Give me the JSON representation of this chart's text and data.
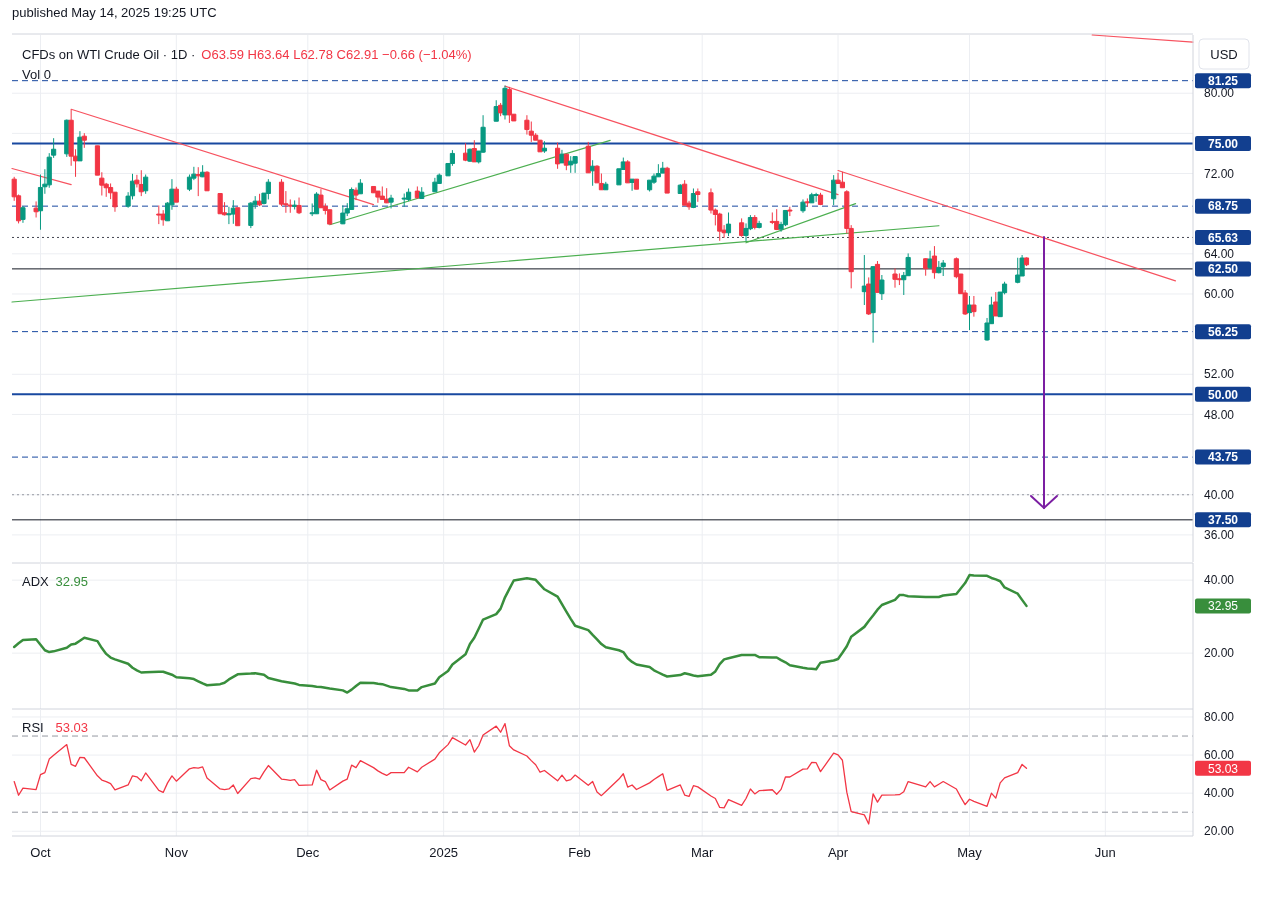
{
  "chart_data": [
    {
      "type": "candlestick",
      "title": "CFDs on WTI Crude Oil · 1D ·",
      "subtitle": "O63.59 H63.64 L62.78 C62.91 −0.66 (−1.04%)",
      "ylabel": "USD",
      "annotations": [
        "published May 14, 2025 19:25 UTC",
        "Vol 0"
      ],
      "x": [
        "2024-09-25",
        "2024-09-26",
        "2024-09-27",
        "2024-09-30",
        "2024-10-01",
        "2024-10-02",
        "2024-10-03",
        "2024-10-04",
        "2024-10-07",
        "2024-10-08",
        "2024-10-09",
        "2024-10-10",
        "2024-10-11",
        "2024-10-14",
        "2024-10-15",
        "2024-10-16",
        "2024-10-17",
        "2024-10-18",
        "2024-10-21",
        "2024-10-22",
        "2024-10-23",
        "2024-10-24",
        "2024-10-25",
        "2024-10-28",
        "2024-10-29",
        "2024-10-30",
        "2024-10-31",
        "2024-11-01",
        "2024-11-04",
        "2024-11-05",
        "2024-11-06",
        "2024-11-07",
        "2024-11-08",
        "2024-11-11",
        "2024-11-12",
        "2024-11-13",
        "2024-11-14",
        "2024-11-15",
        "2024-11-18",
        "2024-11-19",
        "2024-11-20",
        "2024-11-21",
        "2024-11-22",
        "2024-11-25",
        "2024-11-26",
        "2024-11-27",
        "2024-11-28",
        "2024-11-29",
        "2024-12-02",
        "2024-12-03",
        "2024-12-04",
        "2024-12-05",
        "2024-12-06",
        "2024-12-09",
        "2024-12-10",
        "2024-12-11",
        "2024-12-12",
        "2024-12-13",
        "2024-12-16",
        "2024-12-17",
        "2024-12-18",
        "2024-12-19",
        "2024-12-20",
        "2024-12-23",
        "2024-12-24",
        "2024-12-26",
        "2024-12-27",
        "2024-12-30",
        "2024-12-31",
        "2025-01-02",
        "2025-01-03",
        "2025-01-06",
        "2025-01-07",
        "2025-01-08",
        "2025-01-09",
        "2025-01-10",
        "2025-01-13",
        "2025-01-14",
        "2025-01-15",
        "2025-01-16",
        "2025-01-17",
        "2025-01-20",
        "2025-01-21",
        "2025-01-22",
        "2025-01-23",
        "2025-01-24",
        "2025-01-27",
        "2025-01-28",
        "2025-01-29",
        "2025-01-30",
        "2025-01-31",
        "2025-02-03",
        "2025-02-04",
        "2025-02-05",
        "2025-02-06",
        "2025-02-07",
        "2025-02-10",
        "2025-02-11",
        "2025-02-12",
        "2025-02-13",
        "2025-02-14",
        "2025-02-17",
        "2025-02-18",
        "2025-02-19",
        "2025-02-20",
        "2025-02-21",
        "2025-02-24",
        "2025-02-25",
        "2025-02-26",
        "2025-02-27",
        "2025-02-28",
        "2025-03-03",
        "2025-03-04",
        "2025-03-05",
        "2025-03-06",
        "2025-03-07",
        "2025-03-10",
        "2025-03-11",
        "2025-03-12",
        "2025-03-13",
        "2025-03-14",
        "2025-03-17",
        "2025-03-18",
        "2025-03-19",
        "2025-03-20",
        "2025-03-21",
        "2025-03-24",
        "2025-03-25",
        "2025-03-26",
        "2025-03-27",
        "2025-03-28",
        "2025-03-31",
        "2025-04-01",
        "2025-04-02",
        "2025-04-03",
        "2025-04-04",
        "2025-04-07",
        "2025-04-08",
        "2025-04-09",
        "2025-04-10",
        "2025-04-11",
        "2025-04-14",
        "2025-04-15",
        "2025-04-16",
        "2025-04-17",
        "2025-04-21",
        "2025-04-22",
        "2025-04-23",
        "2025-04-24",
        "2025-04-25",
        "2025-04-28",
        "2025-04-29",
        "2025-04-30",
        "2025-05-01",
        "2025-05-02",
        "2025-05-05",
        "2025-05-06",
        "2025-05-07",
        "2025-05-08",
        "2025-05-09",
        "2025-05-12",
        "2025-05-13",
        "2025-05-14"
      ],
      "ohlc": [
        [
          71.44,
          71.67,
          69.28,
          69.68
        ],
        [
          69.78,
          69.91,
          67.03,
          67.29
        ],
        [
          67.43,
          68.75,
          67.09,
          68.59
        ],
        [
          68.55,
          69.22,
          67.62,
          68.19
        ],
        [
          68.29,
          71.9,
          66.4,
          70.61
        ],
        [
          70.68,
          72.43,
          69.98,
          70.94
        ],
        [
          70.87,
          74.03,
          70.58,
          73.63
        ],
        [
          73.83,
          75.52,
          73.56,
          74.42
        ],
        [
          73.96,
          77.38,
          73.66,
          77.31
        ],
        [
          77.31,
          78.37,
          72.77,
          73.73
        ],
        [
          73.73,
          74.42,
          71.67,
          73.26
        ],
        [
          73.26,
          76.22,
          73.26,
          75.62
        ],
        [
          75.72,
          76.02,
          74.56,
          75.32
        ],
        [
          74.76,
          74.76,
          71.84,
          71.84
        ],
        [
          71.54,
          72.13,
          69.81,
          70.84
        ],
        [
          70.94,
          71.07,
          69.68,
          70.58
        ],
        [
          70.61,
          71.01,
          69.45,
          70.08
        ],
        [
          70.14,
          70.14,
          68.19,
          68.69
        ],
        [
          68.75,
          70.14,
          68.59,
          69.75
        ],
        [
          69.78,
          71.97,
          69.42,
          71.24
        ],
        [
          71.34,
          71.87,
          70.61,
          70.97
        ],
        [
          70.91,
          72.33,
          69.75,
          70.18
        ],
        [
          70.28,
          71.9,
          69.98,
          71.64
        ],
        [
          67.96,
          68.82,
          66.96,
          67.86
        ],
        [
          67.96,
          68.35,
          66.8,
          67.39
        ],
        [
          67.29,
          69.15,
          67.29,
          69.05
        ],
        [
          68.88,
          71.44,
          68.39,
          70.44
        ],
        [
          70.44,
          70.68,
          69.15,
          69.15
        ],
        [
          70.44,
          71.9,
          70.25,
          71.64
        ],
        [
          71.54,
          72.67,
          71.34,
          71.94
        ],
        [
          71.9,
          72.63,
          69.75,
          71.77
        ],
        [
          71.67,
          72.83,
          71.64,
          72.13
        ],
        [
          72.13,
          72.23,
          70.28,
          70.28
        ],
        [
          70.01,
          70.01,
          67.99,
          67.99
        ],
        [
          68.09,
          69.15,
          67.82,
          67.89
        ],
        [
          67.92,
          68.69,
          66.96,
          67.99
        ],
        [
          67.96,
          69.35,
          66.99,
          68.55
        ],
        [
          68.59,
          68.59,
          66.8,
          66.8
        ],
        [
          66.83,
          69.15,
          66.56,
          69.05
        ],
        [
          68.88,
          69.75,
          68.49,
          69.25
        ],
        [
          69.25,
          69.98,
          68.75,
          68.88
        ],
        [
          69.02,
          70.05,
          68.92,
          70.05
        ],
        [
          70.01,
          71.44,
          69.42,
          71.14
        ],
        [
          71.14,
          71.44,
          68.75,
          68.95
        ],
        [
          68.98,
          70.25,
          68.09,
          68.92
        ],
        [
          68.85,
          69.42,
          68.09,
          68.78
        ],
        [
          68.72,
          69.32,
          68.42,
          68.85
        ],
        [
          68.82,
          69.61,
          67.96,
          68.09
        ],
        [
          68.02,
          69.02,
          67.76,
          68.09
        ],
        [
          67.99,
          70.14,
          67.99,
          69.95
        ],
        [
          69.85,
          70.44,
          68.59,
          68.59
        ],
        [
          68.72,
          69.02,
          67.92,
          68.32
        ],
        [
          68.39,
          68.39,
          66.96,
          66.96
        ],
        [
          66.99,
          68.82,
          66.96,
          68.06
        ],
        [
          68.06,
          69.05,
          67.76,
          68.49
        ],
        [
          68.42,
          70.61,
          68.42,
          70.41
        ],
        [
          70.34,
          70.61,
          69.35,
          69.85
        ],
        [
          69.98,
          71.44,
          69.98,
          71.04
        ],
        [
          70.71,
          70.71,
          70.08,
          70.08
        ],
        [
          70.25,
          70.25,
          69.08,
          69.65
        ],
        [
          69.75,
          70.71,
          69.42,
          69.42
        ],
        [
          69.45,
          70.54,
          69.05,
          69.08
        ],
        [
          69.15,
          69.88,
          68.52,
          69.55
        ],
        [
          69.48,
          70.01,
          68.69,
          69.55
        ],
        [
          69.42,
          70.51,
          69.25,
          70.14
        ],
        [
          70.25,
          70.71,
          69.51,
          69.58
        ],
        [
          69.51,
          70.64,
          69.51,
          70.14
        ],
        [
          70.18,
          71.57,
          70.18,
          71.14
        ],
        [
          71.01,
          72.0,
          71.01,
          71.84
        ],
        [
          71.77,
          73.0,
          71.77,
          73.0
        ],
        [
          73.0,
          74.33,
          72.77,
          74.0
        ],
        [
          74.03,
          75.02,
          73.23,
          73.33
        ],
        [
          73.23,
          74.49,
          73.16,
          74.42
        ],
        [
          74.49,
          75.32,
          73.16,
          73.16
        ],
        [
          73.16,
          74.24,
          73.0,
          74.24
        ],
        [
          74.13,
          77.81,
          74.06,
          76.61
        ],
        [
          77.21,
          79.3,
          77.21,
          78.67
        ],
        [
          78.8,
          79.03,
          77.71,
          78.04
        ],
        [
          77.84,
          80.76,
          77.38,
          80.49
        ],
        [
          80.36,
          80.63,
          77.04,
          77.84
        ],
        [
          77.91,
          77.91,
          77.24,
          77.24
        ],
        [
          77.31,
          77.81,
          75.88,
          76.38
        ],
        [
          76.22,
          77.18,
          75.15,
          75.82
        ],
        [
          75.82,
          76.02,
          75.32,
          75.32
        ],
        [
          75.32,
          75.35,
          74.16,
          74.16
        ],
        [
          74.24,
          75.22,
          74.06,
          74.52
        ],
        [
          74.52,
          75.09,
          72.47,
          72.96
        ],
        [
          73.06,
          74.36,
          73.06,
          73.93
        ],
        [
          73.93,
          73.93,
          72.33,
          72.83
        ],
        [
          72.86,
          73.73,
          72.07,
          73.23
        ],
        [
          73.03,
          73.69,
          72.07,
          73.69
        ],
        [
          74.72,
          75.15,
          72.07,
          72.07
        ],
        [
          72.27,
          73.33,
          70.78,
          72.73
        ],
        [
          72.73,
          72.83,
          71.07,
          71.07
        ],
        [
          71.01,
          72.0,
          70.38,
          70.38
        ],
        [
          70.38,
          71.17,
          70.38,
          70.94
        ],
        [
          70.87,
          72.47,
          70.87,
          72.47
        ],
        [
          72.4,
          73.59,
          72.4,
          73.16
        ],
        [
          73.16,
          73.33,
          71.07,
          71.07
        ],
        [
          71.11,
          71.44,
          70.28,
          71.44
        ],
        [
          71.44,
          71.44,
          70.44,
          70.44
        ],
        [
          70.38,
          71.34,
          70.21,
          71.34
        ],
        [
          71.14,
          72.0,
          70.97,
          71.74
        ],
        [
          71.67,
          72.93,
          71.67,
          72.0
        ],
        [
          72.04,
          73.16,
          72.04,
          72.53
        ],
        [
          72.53,
          72.67,
          70.05,
          70.05
        ],
        [
          70.01,
          70.94,
          70.01,
          70.84
        ],
        [
          70.94,
          71.34,
          68.85,
          68.85
        ],
        [
          69.05,
          69.28,
          68.39,
          68.69
        ],
        [
          68.62,
          70.51,
          68.55,
          70.01
        ],
        [
          70.18,
          70.51,
          69.18,
          69.91
        ],
        [
          70.08,
          70.51,
          68.02,
          68.36
        ],
        [
          68.36,
          68.52,
          66.83,
          67.92
        ],
        [
          67.96,
          68.09,
          65.3,
          66.26
        ],
        [
          66.36,
          66.86,
          65.6,
          66.1
        ],
        [
          66.1,
          68.12,
          65.77,
          66.96
        ],
        [
          67.09,
          67.53,
          65.7,
          65.83
        ],
        [
          65.83,
          67.03,
          65.27,
          66.53
        ],
        [
          66.5,
          67.86,
          66.36,
          67.62
        ],
        [
          67.62,
          67.86,
          66.43,
          66.63
        ],
        [
          66.63,
          67.29,
          66.53,
          67.03
        ],
        [
          67.23,
          68.12,
          66.96,
          67.16
        ],
        [
          67.23,
          68.45,
          66.36,
          66.43
        ],
        [
          66.46,
          67.19,
          66.2,
          66.93
        ],
        [
          66.9,
          68.32,
          66.76,
          68.32
        ],
        [
          68.36,
          68.69,
          67.76,
          68.29
        ],
        [
          68.29,
          69.42,
          68.09,
          69.15
        ],
        [
          69.18,
          69.52,
          68.69,
          69.08
        ],
        [
          69.08,
          70.08,
          69.08,
          69.88
        ],
        [
          69.81,
          70.08,
          69.18,
          69.91
        ],
        [
          69.85,
          70.08,
          68.85,
          68.92
        ],
        [
          69.48,
          71.84,
          68.85,
          71.34
        ],
        [
          71.34,
          72.07,
          71.01,
          71.01
        ],
        [
          71.14,
          72.17,
          70.58,
          70.58
        ],
        [
          70.18,
          70.34,
          66.03,
          66.53
        ],
        [
          66.53,
          66.86,
          60.56,
          62.22
        ],
        [
          60.23,
          63.88,
          58.9,
          60.79
        ],
        [
          60.99,
          61.65,
          57.91,
          58.01
        ],
        [
          58.14,
          62.78,
          55.15,
          62.72
        ],
        [
          62.95,
          63.28,
          60.16,
          60.16
        ],
        [
          60.03,
          61.89,
          59.4,
          61.39
        ],
        [
          61.99,
          62.55,
          60.63,
          61.46
        ],
        [
          61.52,
          62.05,
          60.89,
          61.46
        ],
        [
          61.42,
          62.19,
          59.9,
          61.85
        ],
        [
          61.82,
          64.04,
          61.82,
          63.64
        ],
        [
          63.51,
          63.55,
          61.82,
          62.52
        ],
        [
          62.62,
          64.31,
          62.62,
          63.48
        ],
        [
          63.78,
          64.77,
          61.52,
          62.12
        ],
        [
          62.12,
          63.28,
          62.05,
          62.65
        ],
        [
          62.72,
          63.38,
          61.79,
          63.08
        ],
        [
          63.51,
          63.64,
          61.56,
          61.72
        ],
        [
          61.99,
          61.99,
          60.03,
          60.03
        ],
        [
          60.1,
          60.39,
          57.91,
          58.01
        ],
        [
          58.14,
          59.8,
          56.41,
          58.9
        ],
        [
          58.9,
          59.8,
          57.74,
          58.24
        ],
        [
          55.42,
          57.61,
          55.35,
          57.11
        ],
        [
          57.04,
          59.73,
          57.04,
          58.9
        ],
        [
          59.2,
          60.19,
          57.81,
          57.81
        ],
        [
          57.74,
          60.19,
          57.74,
          60.19
        ],
        [
          60.13,
          61.22,
          59.96,
          60.99
        ],
        [
          61.16,
          63.61,
          61.06,
          61.89
        ],
        [
          61.79,
          63.88,
          61.79,
          63.58
        ],
        [
          63.59,
          63.64,
          62.78,
          62.91
        ]
      ],
      "series": [
        {
          "type": "line",
          "color": "#f7525f",
          "x": [
            "2024-09-24T12:00",
            "2024-10-08"
          ],
          "values": [
            72.5,
            70.9
          ]
        },
        {
          "type": "line",
          "color": "#f7525f",
          "x": [
            "2024-10-08",
            "2024-12-16"
          ],
          "values": [
            78.4,
            68.9
          ]
        },
        {
          "type": "line",
          "color": "#f7525f",
          "x": [
            "2025-01-15",
            "2025-04-01"
          ],
          "values": [
            80.7,
            69.9
          ]
        },
        {
          "type": "line",
          "color": "#f7525f",
          "x": [
            "2025-04-01",
            "2025-06-17"
          ],
          "values": [
            72.3,
            61.3
          ]
        },
        {
          "type": "line",
          "color": "#f7525f",
          "x": [
            "2025-05-29",
            "2025-06-21"
          ],
          "values": [
            85.8,
            85.1
          ]
        },
        {
          "type": "line",
          "color": "#4caf50",
          "x": [
            "2024-12-06",
            "2025-02-08"
          ],
          "values": [
            66.9,
            75.3
          ]
        },
        {
          "type": "line",
          "color": "#4caf50",
          "x": [
            "2024-09-24T12:00",
            "2025-04-24"
          ],
          "values": [
            59.2,
            66.8
          ]
        },
        {
          "type": "line",
          "color": "#4caf50",
          "x": [
            "2025-03-11",
            "2025-04-05"
          ],
          "values": [
            65.1,
            69.0
          ]
        }
      ],
      "xlim": [
        "2024-09-24T12:00",
        "2025-06-21"
      ],
      "xticks": [
        {
          "value": "2024-10-01",
          "label": null
        },
        {
          "value": "2024-11-01",
          "label": null
        },
        {
          "value": "2024-12-01",
          "label": null
        },
        {
          "value": "2025-01-01",
          "label": null
        },
        {
          "value": "2025-02-01",
          "label": null
        },
        {
          "value": "2025-03-01",
          "label": null
        },
        {
          "value": "2025-04-01",
          "label": null
        },
        {
          "value": "2025-05-01",
          "label": null
        },
        {
          "value": "2025-06-01",
          "label": null
        }
      ],
      "ylim": [
        33.3,
        85.8
      ],
      "yticks": [
        {
          "value": 36,
          "label": "36.00"
        },
        {
          "value": 40,
          "label": "40.00"
        },
        {
          "value": 48,
          "label": "48.00"
        },
        {
          "value": 52,
          "label": "52.00"
        },
        {
          "value": 60,
          "label": "60.00"
        },
        {
          "value": 64,
          "label": "64.00"
        },
        {
          "value": 72,
          "label": "72.00"
        },
        {
          "value": 76,
          "label": null
        },
        {
          "value": 80,
          "label": "80.00"
        }
      ],
      "grid": true,
      "tick_labels": "y",
      "ref_lines": [
        {
          "axis": "y",
          "value": 81.25,
          "label": "81.25",
          "color": "#1848a0",
          "line_style": "dashed"
        },
        {
          "axis": "y",
          "value": 75.0,
          "label": "75.00",
          "color": "#1848a0",
          "line_style": "solid"
        },
        {
          "axis": "y",
          "value": 68.75,
          "label": "68.75",
          "color": "#1848a0",
          "line_style": "dashed"
        },
        {
          "axis": "y",
          "value": 65.63,
          "label": "65.63",
          "color": "#434651",
          "line_style": "dotted"
        },
        {
          "axis": "y",
          "value": 62.5,
          "label": "62.50",
          "color": "#131722",
          "line_style": "solid"
        },
        {
          "axis": "y",
          "value": 56.25,
          "label": "56.25",
          "color": "#1848a0",
          "line_style": "dashed"
        },
        {
          "axis": "y",
          "value": 50.0,
          "label": "50.00",
          "color": "#1848a0",
          "line_style": "solid"
        },
        {
          "axis": "y",
          "value": 43.75,
          "label": "43.75",
          "color": "#1848a0",
          "line_style": "dashed"
        },
        {
          "axis": "y",
          "value": 40.0,
          "color": "#9598a1",
          "line_style": "dotted"
        },
        {
          "axis": "y",
          "value": 37.5,
          "label": "37.50",
          "color": "#131722",
          "line_style": "solid"
        }
      ]
    },
    {
      "type": "line",
      "x": [
        "2024-09-25",
        "2024-09-26",
        "2024-09-27",
        "2024-09-30",
        "2024-10-01",
        "2024-10-02",
        "2024-10-03",
        "2024-10-04",
        "2024-10-07",
        "2024-10-08",
        "2024-10-09",
        "2024-10-10",
        "2024-10-11",
        "2024-10-14",
        "2024-10-15",
        "2024-10-16",
        "2024-10-17",
        "2024-10-18",
        "2024-10-21",
        "2024-10-22",
        "2024-10-23",
        "2024-10-24",
        "2024-10-25",
        "2024-10-28",
        "2024-10-29",
        "2024-10-30",
        "2024-10-31",
        "2024-11-01",
        "2024-11-04",
        "2024-11-05",
        "2024-11-06",
        "2024-11-07",
        "2024-11-08",
        "2024-11-11",
        "2024-11-12",
        "2024-11-13",
        "2024-11-14",
        "2024-11-15",
        "2024-11-18",
        "2024-11-19",
        "2024-11-20",
        "2024-11-21",
        "2024-11-22",
        "2024-11-25",
        "2024-11-26",
        "2024-11-27",
        "2024-11-28",
        "2024-11-29",
        "2024-12-02",
        "2024-12-03",
        "2024-12-04",
        "2024-12-05",
        "2024-12-06",
        "2024-12-09",
        "2024-12-10",
        "2024-12-11",
        "2024-12-12",
        "2024-12-13",
        "2024-12-16",
        "2024-12-17",
        "2024-12-18",
        "2024-12-19",
        "2024-12-20",
        "2024-12-23",
        "2024-12-24",
        "2024-12-26",
        "2024-12-27",
        "2024-12-30",
        "2024-12-31",
        "2025-01-02",
        "2025-01-03",
        "2025-01-06",
        "2025-01-07",
        "2025-01-08",
        "2025-01-09",
        "2025-01-10",
        "2025-01-13",
        "2025-01-14",
        "2025-01-15",
        "2025-01-16",
        "2025-01-17",
        "2025-01-20",
        "2025-01-21",
        "2025-01-22",
        "2025-01-23",
        "2025-01-24",
        "2025-01-27",
        "2025-01-28",
        "2025-01-29",
        "2025-01-30",
        "2025-01-31",
        "2025-02-03",
        "2025-02-04",
        "2025-02-05",
        "2025-02-06",
        "2025-02-07",
        "2025-02-10",
        "2025-02-11",
        "2025-02-12",
        "2025-02-13",
        "2025-02-14",
        "2025-02-17",
        "2025-02-18",
        "2025-02-19",
        "2025-02-20",
        "2025-02-21",
        "2025-02-24",
        "2025-02-25",
        "2025-02-26",
        "2025-02-27",
        "2025-02-28",
        "2025-03-03",
        "2025-03-04",
        "2025-03-05",
        "2025-03-06",
        "2025-03-07",
        "2025-03-10",
        "2025-03-11",
        "2025-03-12",
        "2025-03-13",
        "2025-03-14",
        "2025-03-17",
        "2025-03-18",
        "2025-03-19",
        "2025-03-20",
        "2025-03-21",
        "2025-03-24",
        "2025-03-25",
        "2025-03-26",
        "2025-03-27",
        "2025-03-28",
        "2025-03-31",
        "2025-04-01",
        "2025-04-02",
        "2025-04-03",
        "2025-04-04",
        "2025-04-07",
        "2025-04-08",
        "2025-04-09",
        "2025-04-10",
        "2025-04-11",
        "2025-04-14",
        "2025-04-15",
        "2025-04-16",
        "2025-04-17",
        "2025-04-21",
        "2025-04-22",
        "2025-04-23",
        "2025-04-24",
        "2025-04-25",
        "2025-04-28",
        "2025-04-29",
        "2025-04-30",
        "2025-05-01",
        "2025-05-02",
        "2025-05-05",
        "2025-05-06",
        "2025-05-07",
        "2025-05-08",
        "2025-05-09",
        "2025-05-12",
        "2025-05-13",
        "2025-05-14"
      ],
      "series": [
        {
          "name": "ADX",
          "color": "#388e3c",
          "values": [
            21.7,
            22.7,
            23.6,
            23.8,
            22.3,
            20.8,
            20.3,
            20.5,
            21.5,
            22.4,
            22.6,
            23.4,
            24.2,
            23.3,
            21.4,
            19.8,
            18.8,
            18.3,
            17.1,
            16.0,
            15.3,
            14.7,
            14.8,
            14.9,
            14.9,
            14.5,
            14.1,
            13.4,
            13.1,
            12.9,
            12.3,
            11.7,
            11.2,
            11.5,
            11.9,
            12.8,
            13.5,
            14.2,
            14.4,
            14.5,
            14.3,
            14.1,
            13.2,
            12.3,
            12.1,
            11.9,
            11.7,
            11.3,
            11.0,
            10.8,
            10.7,
            10.5,
            10.3,
            9.8,
            9.2,
            10.0,
            11.0,
            11.9,
            11.8,
            11.6,
            11.5,
            11.1,
            10.7,
            10.2,
            9.8,
            9.8,
            10.7,
            11.7,
            13.4,
            15.1,
            16.9,
            19.7,
            22.5,
            24.2,
            26.7,
            29.2,
            30.7,
            32.2,
            35.3,
            37.6,
            39.9,
            40.5,
            40.3,
            40.1,
            38.8,
            37.5,
            35.5,
            33.4,
            31.4,
            29.4,
            27.5,
            26.3,
            25.0,
            23.8,
            22.5,
            21.6,
            20.8,
            20.3,
            18.6,
            17.6,
            16.9,
            16.2,
            15.3,
            14.7,
            14.1,
            13.6,
            14.0,
            14.5,
            14.2,
            13.9,
            13.7,
            14.1,
            15.0,
            17.0,
            18.3,
            18.6,
            19.5,
            19.5,
            19.5,
            19.5,
            18.9,
            18.8,
            18.8,
            18.1,
            17.5,
            16.7,
            16.0,
            15.8,
            15.7,
            15.6,
            17.4,
            18.0,
            18.4,
            20.1,
            21.9,
            24.5,
            27.2,
            28.8,
            30.3,
            31.9,
            33.2,
            34.6,
            35.9,
            35.9,
            35.6,
            35.4,
            35.4,
            35.4,
            35.4,
            35.8,
            36.2,
            37.7,
            39.2,
            41.4,
            41.3,
            41.2,
            40.6,
            40.2,
            39.7,
            38.0,
            36.3,
            34.6,
            32.95
          ]
        }
      ],
      "annotations": [
        "32.95"
      ],
      "xlim": [
        "2024-09-24T12:00",
        "2025-06-21"
      ],
      "xticks": [
        {
          "value": "2024-10-01",
          "label": null
        },
        {
          "value": "2024-11-01",
          "label": null
        },
        {
          "value": "2024-12-01",
          "label": null
        },
        {
          "value": "2025-01-01",
          "label": null
        },
        {
          "value": "2025-02-01",
          "label": null
        },
        {
          "value": "2025-03-01",
          "label": null
        },
        {
          "value": "2025-04-01",
          "label": null
        },
        {
          "value": "2025-05-01",
          "label": null
        },
        {
          "value": "2025-06-01",
          "label": null
        }
      ],
      "ylim": [
        4.7,
        44.7
      ],
      "yticks": [
        {
          "value": 20,
          "label": "20.00"
        },
        {
          "value": 40,
          "label": "40.00"
        }
      ],
      "grid": true,
      "tick_labels": "y"
    },
    {
      "type": "line",
      "x": [
        "2024-09-25",
        "2024-09-26",
        "2024-09-27",
        "2024-09-30",
        "2024-10-01",
        "2024-10-02",
        "2024-10-03",
        "2024-10-04",
        "2024-10-07",
        "2024-10-08",
        "2024-10-09",
        "2024-10-10",
        "2024-10-11",
        "2024-10-14",
        "2024-10-15",
        "2024-10-16",
        "2024-10-17",
        "2024-10-18",
        "2024-10-21",
        "2024-10-22",
        "2024-10-23",
        "2024-10-24",
        "2024-10-25",
        "2024-10-28",
        "2024-10-29",
        "2024-10-30",
        "2024-10-31",
        "2024-11-01",
        "2024-11-04",
        "2024-11-05",
        "2024-11-06",
        "2024-11-07",
        "2024-11-08",
        "2024-11-11",
        "2024-11-12",
        "2024-11-13",
        "2024-11-14",
        "2024-11-15",
        "2024-11-18",
        "2024-11-19",
        "2024-11-20",
        "2024-11-21",
        "2024-11-22",
        "2024-11-25",
        "2024-11-26",
        "2024-11-27",
        "2024-11-28",
        "2024-11-29",
        "2024-12-02",
        "2024-12-03",
        "2024-12-04",
        "2024-12-05",
        "2024-12-06",
        "2024-12-09",
        "2024-12-10",
        "2024-12-11",
        "2024-12-12",
        "2024-12-13",
        "2024-12-16",
        "2024-12-17",
        "2024-12-18",
        "2024-12-19",
        "2024-12-20",
        "2024-12-23",
        "2024-12-24",
        "2024-12-26",
        "2024-12-27",
        "2024-12-30",
        "2024-12-31",
        "2025-01-02",
        "2025-01-03",
        "2025-01-06",
        "2025-01-07",
        "2025-01-08",
        "2025-01-09",
        "2025-01-10",
        "2025-01-13",
        "2025-01-14",
        "2025-01-15",
        "2025-01-16",
        "2025-01-17",
        "2025-01-20",
        "2025-01-21",
        "2025-01-22",
        "2025-01-23",
        "2025-01-24",
        "2025-01-27",
        "2025-01-28",
        "2025-01-29",
        "2025-01-30",
        "2025-01-31",
        "2025-02-03",
        "2025-02-04",
        "2025-02-05",
        "2025-02-06",
        "2025-02-07",
        "2025-02-10",
        "2025-02-11",
        "2025-02-12",
        "2025-02-13",
        "2025-02-14",
        "2025-02-17",
        "2025-02-18",
        "2025-02-19",
        "2025-02-20",
        "2025-02-21",
        "2025-02-24",
        "2025-02-25",
        "2025-02-26",
        "2025-02-27",
        "2025-02-28",
        "2025-03-03",
        "2025-03-04",
        "2025-03-05",
        "2025-03-06",
        "2025-03-07",
        "2025-03-10",
        "2025-03-11",
        "2025-03-12",
        "2025-03-13",
        "2025-03-14",
        "2025-03-17",
        "2025-03-18",
        "2025-03-19",
        "2025-03-20",
        "2025-03-21",
        "2025-03-24",
        "2025-03-25",
        "2025-03-26",
        "2025-03-27",
        "2025-03-28",
        "2025-03-31",
        "2025-04-01",
        "2025-04-02",
        "2025-04-03",
        "2025-04-04",
        "2025-04-07",
        "2025-04-08",
        "2025-04-09",
        "2025-04-10",
        "2025-04-11",
        "2025-04-14",
        "2025-04-15",
        "2025-04-16",
        "2025-04-17",
        "2025-04-21",
        "2025-04-22",
        "2025-04-23",
        "2025-04-24",
        "2025-04-25",
        "2025-04-28",
        "2025-04-29",
        "2025-04-30",
        "2025-05-01",
        "2025-05-02",
        "2025-05-05",
        "2025-05-06",
        "2025-05-07",
        "2025-05-08",
        "2025-05-09",
        "2025-05-12",
        "2025-05-13",
        "2025-05-14"
      ],
      "series": [
        {
          "name": "RSI",
          "color": "#f23645",
          "values": [
            46.1,
            38.9,
            42.6,
            41.9,
            49.7,
            50.8,
            57.9,
            59.9,
            65.5,
            55.1,
            54.1,
            58.8,
            58.6,
            49.1,
            46.9,
            46.1,
            45.0,
            41.7,
            44.3,
            49.1,
            48.6,
            46.5,
            50.6,
            41.5,
            40.4,
            45.4,
            49.1,
            46.3,
            52.8,
            53.4,
            53.2,
            53.8,
            48.0,
            42.2,
            41.9,
            42.2,
            44.3,
            39.8,
            47.6,
            48.0,
            47.4,
            51.2,
            54.5,
            47.4,
            47.1,
            46.7,
            47.1,
            44.1,
            44.3,
            52.1,
            47.1,
            46.1,
            41.7,
            46.3,
            47.4,
            54.7,
            53.4,
            57.1,
            53.4,
            51.7,
            50.4,
            49.3,
            50.8,
            50.8,
            53.6,
            51.2,
            53.6,
            57.9,
            61.2,
            65.5,
            69.2,
            65.3,
            68.1,
            61.6,
            64.9,
            70.5,
            75.2,
            72.0,
            76.5,
            64.9,
            62.7,
            59.5,
            57.1,
            54.9,
            51.0,
            51.9,
            46.5,
            49.5,
            46.5,
            47.1,
            49.5,
            44.1,
            46.1,
            40.6,
            38.7,
            40.9,
            47.4,
            50.2,
            43.2,
            44.3,
            41.9,
            45.4,
            47.2,
            48.7,
            50.2,
            41.5,
            44.3,
            39.0,
            38.3,
            43.9,
            43.3,
            38.5,
            37.2,
            32.5,
            32.3,
            36.6,
            33.6,
            37.2,
            42.2,
            39.6,
            41.3,
            41.8,
            39.4,
            42.0,
            48.5,
            48.5,
            52.6,
            52.8,
            56.2,
            56.0,
            51.3,
            61.0,
            60.1,
            57.3,
            40.5,
            30.3,
            28.6,
            23.8,
            39.6,
            35.3,
            39.0,
            39.1,
            39.2,
            40.7,
            46.1,
            43.3,
            46.1,
            43.3,
            44.7,
            46.1,
            42.2,
            37.9,
            34.0,
            36.8,
            35.7,
            33.1,
            40.0,
            37.4,
            45.4,
            48.0,
            50.8,
            55.1,
            53.03
          ]
        }
      ],
      "annotations": [
        "53.03"
      ],
      "xlim": [
        "2024-09-24T12:00",
        "2025-06-21"
      ],
      "xticks": [
        {
          "value": "2024-10-01",
          "label": "Oct"
        },
        {
          "value": "2024-11-01",
          "label": "Nov"
        },
        {
          "value": "2024-12-01",
          "label": "Dec"
        },
        {
          "value": "2025-01-01",
          "label": "2025"
        },
        {
          "value": "2025-02-01",
          "label": "Feb"
        },
        {
          "value": "2025-03-01",
          "label": "Mar"
        },
        {
          "value": "2025-04-01",
          "label": "Apr"
        },
        {
          "value": "2025-05-01",
          "label": "May"
        },
        {
          "value": "2025-06-01",
          "label": "Jun"
        }
      ],
      "ylim": [
        17.5,
        84.2
      ],
      "yticks": [
        {
          "value": 20,
          "label": "20.00"
        },
        {
          "value": 40,
          "label": "40.00"
        },
        {
          "value": 60,
          "label": "60.00"
        },
        {
          "value": 80,
          "label": "80.00"
        }
      ],
      "ref_lines": [
        {
          "axis": "y",
          "value": 70,
          "color": "#9598a1",
          "line_style": "dashed"
        },
        {
          "axis": "y",
          "value": 30,
          "color": "#9598a1",
          "line_style": "dashed"
        }
      ],
      "grid": true
    }
  ]
}
